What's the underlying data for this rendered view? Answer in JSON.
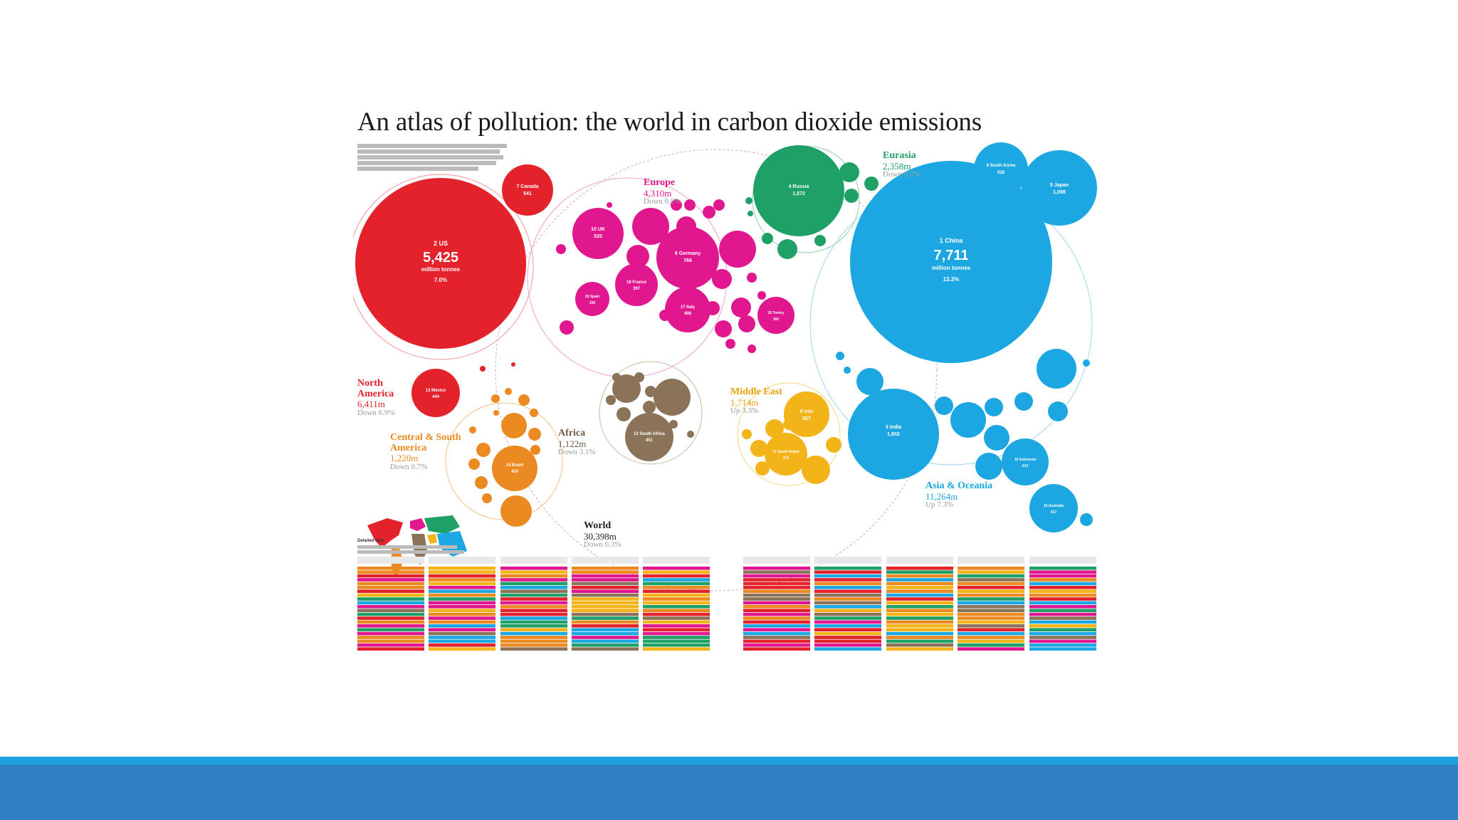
{
  "slide": {
    "title": "An atlas of pollution: the world in carbon dioxide emissions"
  },
  "colors": {
    "north_america": "#e3222b",
    "europe": "#e0178f",
    "eurasia": "#1fa067",
    "asia_oceania": "#1ca7e2",
    "africa": "#8a7358",
    "middle_east": "#f2b418",
    "central_south_america": "#ec8a22",
    "bottom_bar": "#2f80c4",
    "bottom_bar_line": "#1fa3e0"
  },
  "regions": {
    "north_america": {
      "name": "North America",
      "value": "6,411m",
      "change": "Down 6.9%"
    },
    "central_south_america": {
      "name": "Central & South America",
      "value": "1,220m",
      "change": "Down 0.7%"
    },
    "europe": {
      "name": "Europe",
      "value": "4,310m",
      "change": "Down 6.9%"
    },
    "eurasia": {
      "name": "Eurasia",
      "value": "2,358m",
      "change": "Down 9.2%"
    },
    "africa": {
      "name": "Africa",
      "value": "1,122m",
      "change": "Down 3.1%"
    },
    "middle_east": {
      "name": "Middle East",
      "value": "1,714m",
      "change": "Up 3.3%"
    },
    "asia_oceania": {
      "name": "Asia & Oceania",
      "value": "11,264m",
      "change": "Up 7.3%"
    },
    "world": {
      "name": "World",
      "value": "30,398m",
      "change": "Down 0.3%"
    }
  },
  "countries": {
    "us": {
      "rank": "2 US",
      "value": "5,425",
      "unit": "million tonnes",
      "change": "7.0%"
    },
    "china": {
      "rank": "1 China",
      "value": "7,711",
      "unit": "million tonnes",
      "change": "13.3%"
    },
    "canada": {
      "rank": "7 Canada",
      "value": "541"
    },
    "russia": {
      "rank": "4 Russia",
      "value": "1,572"
    },
    "japan": {
      "rank": "5 Japan",
      "value": "1,098"
    },
    "south_korea": {
      "rank": "8 South Korea",
      "value": "528"
    },
    "india": {
      "rank": "3 India",
      "value": "1,602"
    },
    "germany": {
      "rank": "6 Germany",
      "value": "766"
    },
    "uk": {
      "rank": "10 UK",
      "value": "520"
    },
    "iran": {
      "rank": "9 Iran",
      "value": "527"
    },
    "mexico": {
      "rank": "13 Mexico",
      "value": "444"
    },
    "south_africa": {
      "rank": "12 South Africa",
      "value": "451"
    },
    "brazil": {
      "rank": "14 Brazil",
      "value": "424"
    },
    "indonesia": {
      "rank": "16 Indonesia",
      "value": "413"
    },
    "saudi_arabia": {
      "rank": "11 Saudi Arabia",
      "value": "470"
    },
    "australia": {
      "rank": "15 Australia",
      "value": "417"
    },
    "italy": {
      "rank": "17 Italy",
      "value": "408"
    },
    "france": {
      "rank": "18 France",
      "value": "397"
    },
    "spain": {
      "rank": "19 Spain",
      "value": "330"
    },
    "turkey": {
      "rank": "20 Turkey",
      "value": "300"
    }
  },
  "detail_label": "Detailed data"
}
